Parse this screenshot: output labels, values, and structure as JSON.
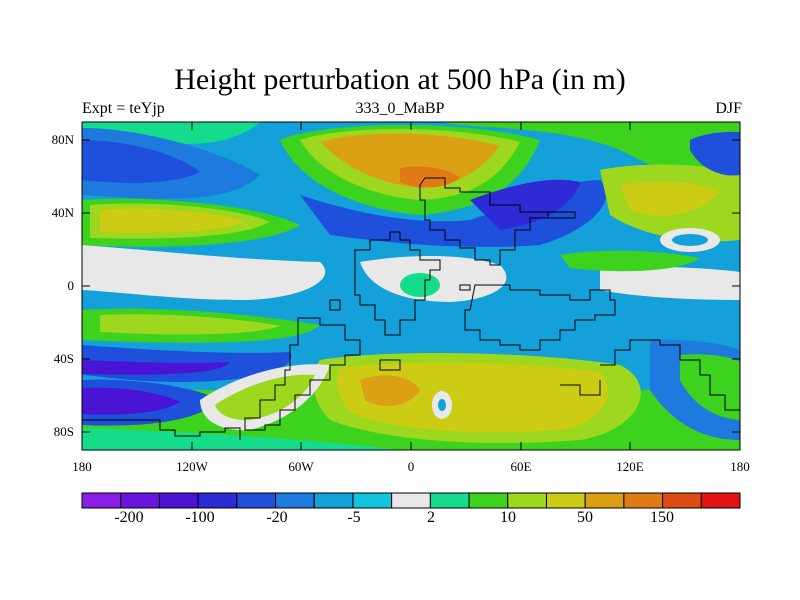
{
  "title": "Height perturbation at 500 hPa (in m)",
  "subtitle_left": "Expt = teYjp",
  "subtitle_center": "333_0_MaBP",
  "subtitle_right": "DJF",
  "lat_labels": [
    "80N",
    "40N",
    "0",
    "40S",
    "80S"
  ],
  "lon_labels": [
    "180",
    "120W",
    "60W",
    "0",
    "60E",
    "120E",
    "180"
  ],
  "colorbar": {
    "colors": [
      "#8a1ee6",
      "#6a14e0",
      "#4a14d4",
      "#2e2ad6",
      "#1e50dc",
      "#1e7ade",
      "#14a0d8",
      "#12c4de",
      "#e8e8e8",
      "#14dc8a",
      "#3cd21e",
      "#9ed81e",
      "#cccc14",
      "#dca014",
      "#e07a14",
      "#e04a14",
      "#e01414"
    ],
    "labels": [
      "-200",
      "-100",
      "-20",
      "-5",
      "2",
      "10",
      "50",
      "150"
    ]
  }
}
